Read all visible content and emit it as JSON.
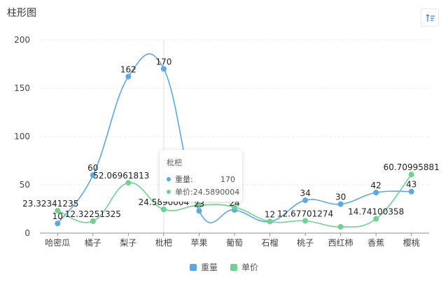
{
  "title": "柱形图",
  "toolbar": {
    "sort_icon": "sort-icon"
  },
  "colors": {
    "weight": "#5aa9e6",
    "price": "#6fd390",
    "grid": "#e6e8ec",
    "axis": "#8a8f99"
  },
  "chart_data": {
    "type": "line",
    "title": "柱形图",
    "categories": [
      "哈密瓜",
      "橘子",
      "梨子",
      "枇杷",
      "苹果",
      "葡萄",
      "石榴",
      "桃子",
      "西红柿",
      "香蕉",
      "樱桃"
    ],
    "series": [
      {
        "name": "重量",
        "values": [
          10,
          60,
          162,
          170,
          23,
          24,
          12,
          34,
          30,
          42,
          43
        ],
        "labels": [
          "10",
          "60",
          "162",
          "170",
          "23",
          "24",
          "12",
          "34",
          "30",
          "42",
          "43"
        ]
      },
      {
        "name": "单价",
        "values": [
          23.32341235,
          12.32251325,
          52.06961813,
          24.5890004,
          29,
          27,
          12,
          12.67701274,
          6.5,
          14.74100358,
          60.70995881
        ],
        "labels": [
          "23.32341235",
          "12.32251325",
          "52.06961813",
          "24.5890004",
          "",
          "",
          "",
          "12.67701274",
          "",
          "14.74100358",
          "60.70995881"
        ]
      }
    ],
    "ylim": [
      0,
      200
    ],
    "yticks": [
      0,
      50,
      100,
      150,
      200
    ],
    "smooth": true,
    "legend": "bottom-center",
    "grid": true
  },
  "tooltip": {
    "title": "枇杷",
    "rows": [
      {
        "name": "重量:",
        "value": "170"
      },
      {
        "name": "单价:",
        "value": "24.5890004"
      }
    ]
  }
}
